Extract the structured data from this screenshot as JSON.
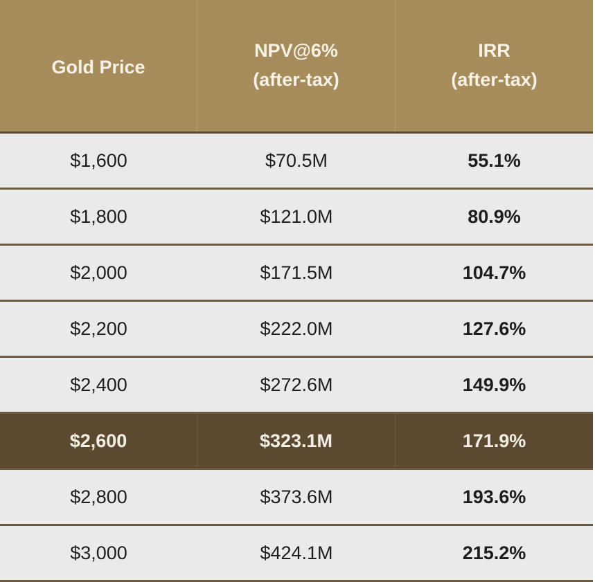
{
  "table": {
    "headers": [
      {
        "line1": "Gold Price",
        "line2": ""
      },
      {
        "line1": "NPV@6%",
        "line2": "(after-tax)"
      },
      {
        "line1": "IRR",
        "line2": "(after-tax)"
      }
    ],
    "rows": [
      {
        "gold_price": "$1,600",
        "npv": "$70.5M",
        "irr": "55.1%"
      },
      {
        "gold_price": "$1,800",
        "npv": "$121.0M",
        "irr": "80.9%"
      },
      {
        "gold_price": "$2,000",
        "npv": "$171.5M",
        "irr": "104.7%"
      },
      {
        "gold_price": "$2,200",
        "npv": "$222.0M",
        "irr": "127.6%"
      },
      {
        "gold_price": "$2,400",
        "npv": "$272.6M",
        "irr": "149.9%"
      },
      {
        "gold_price": "$2,600",
        "npv": "$323.1M",
        "irr": "171.9%"
      },
      {
        "gold_price": "$2,800",
        "npv": "$373.6M",
        "irr": "193.6%"
      },
      {
        "gold_price": "$3,000",
        "npv": "$424.1M",
        "irr": "215.2%"
      }
    ],
    "highlighted_row_index": 5
  },
  "colors": {
    "header_bg": "#a68c5a",
    "header_text": "#f7f1e6",
    "row_bg": "#eaeaeb",
    "highlight_bg": "#5b4a30",
    "separator": "#6b5a3f"
  }
}
